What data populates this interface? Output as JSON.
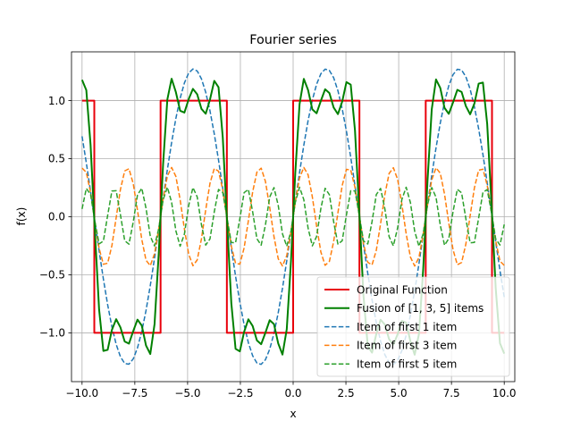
{
  "chart_data": {
    "type": "line",
    "title": "Fourier series",
    "xlabel": "x",
    "ylabel": "f(x)",
    "xlim": [
      -10.5,
      10.5
    ],
    "ylim": [
      -1.42,
      1.42
    ],
    "x_range": [
      -10,
      10
    ],
    "x_ticks": [
      -10.0,
      -7.5,
      -5.0,
      -2.5,
      0.0,
      2.5,
      5.0,
      7.5,
      10.0
    ],
    "x_tick_labels": [
      "−10.0",
      "−7.5",
      "−5.0",
      "−2.5",
      "0.0",
      "2.5",
      "5.0",
      "7.5",
      "10.0"
    ],
    "y_ticks": [
      -1.0,
      -0.5,
      0.0,
      0.5,
      1.0
    ],
    "y_tick_labels": [
      "−1.0",
      "−0.5",
      "0.0",
      "0.5",
      "1.0"
    ],
    "grid": true,
    "legend_position": "lower-right",
    "series": [
      {
        "name": "Original Function",
        "color": "#e8000b",
        "style": "solid",
        "points": [
          [
            -10.0,
            1.0
          ],
          [
            -9.42,
            1.0
          ],
          [
            -9.42,
            -1.0
          ],
          [
            -6.28,
            -1.0
          ],
          [
            -6.28,
            1.0
          ],
          [
            -3.14,
            1.0
          ],
          [
            -3.14,
            -1.0
          ],
          [
            0.0,
            -1.0
          ],
          [
            0.0,
            1.0
          ],
          [
            3.14,
            1.0
          ],
          [
            3.14,
            -1.0
          ],
          [
            6.28,
            -1.0
          ],
          [
            6.28,
            1.0
          ],
          [
            9.42,
            1.0
          ],
          [
            9.42,
            -1.0
          ],
          [
            10.0,
            -1.0
          ]
        ]
      },
      {
        "name": "Fusion of [1, 3, 5] items",
        "color": "#008000",
        "style": "solid",
        "terms": [
          1,
          3,
          5
        ],
        "amplitude": 1.2732
      },
      {
        "name": "Item of first 1 item",
        "color": "#1f77b4",
        "style": "dashed",
        "terms": [
          1
        ],
        "amplitude": 1.2732
      },
      {
        "name": "Item of first 3 item",
        "color": "#ff7f0e",
        "style": "dashed",
        "terms": [
          3
        ],
        "amplitude": 1.2732
      },
      {
        "name": "Item of first 5 item",
        "color": "#2ca02c",
        "style": "dashed",
        "terms": [
          5
        ],
        "amplitude": 1.2732
      }
    ]
  }
}
